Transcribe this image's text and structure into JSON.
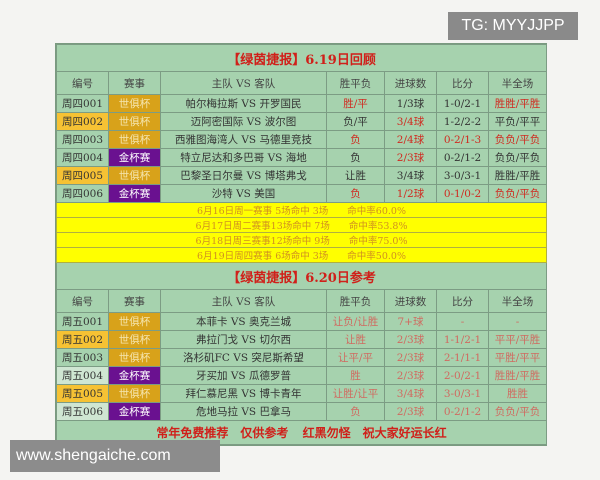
{
  "watermark_top": "TG: MYYJJPP",
  "watermark_bottom": "www.shengaiche.com",
  "section1": {
    "title": "【绿茵捷报】6.19日回顾",
    "headers": [
      "编号",
      "赛事",
      "主队 VS 客队",
      "胜平负",
      "进球数",
      "比分",
      "半全场"
    ],
    "rows": [
      {
        "id": "周四001",
        "id_bg": "green",
        "event": "世俱杯",
        "event_type": "wc",
        "match": "帕尔梅拉斯 VS 开罗国民",
        "result": "胜/平",
        "goals": "1/3球",
        "score": "1-0/2-1",
        "half": "胜胜/平胜",
        "red": [
          true,
          false,
          false,
          true
        ]
      },
      {
        "id": "周四002",
        "id_bg": "yellow",
        "event": "世俱杯",
        "event_type": "wc",
        "match": "迈阿密国际 VS 波尔图",
        "result": "负/平",
        "goals": "3/4球",
        "score": "1-2/2-2",
        "half": "平负/平平",
        "red": [
          false,
          true,
          false,
          false
        ]
      },
      {
        "id": "周四003",
        "id_bg": "green",
        "event": "世俱杯",
        "event_type": "wc",
        "match": "西雅图海湾人 VS 马德里竞技",
        "result": "负",
        "goals": "2/4球",
        "score": "0-2/1-3",
        "half": "负负/平负",
        "red": [
          true,
          true,
          true,
          true
        ]
      },
      {
        "id": "周四004",
        "id_bg": "green",
        "event": "金杯赛",
        "event_type": "gc",
        "match": "特立尼达和多巴哥 VS 海地",
        "result": "负",
        "goals": "2/3球",
        "score": "0-2/1-2",
        "half": "负负/平负",
        "red": [
          false,
          true,
          false,
          false
        ]
      },
      {
        "id": "周四005",
        "id_bg": "yellow",
        "event": "世俱杯",
        "event_type": "wc",
        "match": "巴黎圣日尔曼 VS 博塔弗戈",
        "result": "让胜",
        "goals": "3/4球",
        "score": "3-0/3-1",
        "half": "胜胜/平胜",
        "red": [
          false,
          false,
          false,
          false
        ]
      },
      {
        "id": "周四006",
        "id_bg": "green",
        "event": "金杯赛",
        "event_type": "gc",
        "match": "沙特 VS 美国",
        "result": "负",
        "goals": "1/2球",
        "score": "0-1/0-2",
        "half": "负负/平负",
        "red": [
          true,
          true,
          true,
          true
        ]
      }
    ]
  },
  "stats": [
    "6月16日周一赛事 5场命中 3场　　命中率60.0%",
    "6月17日周二赛事13场命中 7场　　命中率53.8%",
    "6月18日周三赛事12场命中 9场　　命中率75.0%",
    "6月19日周四赛事 6场命中 3场　　命中率50.0%"
  ],
  "section2": {
    "title": "【绿茵捷报】6.20日参考",
    "headers": [
      "编号",
      "赛事",
      "主队 VS 客队",
      "胜平负",
      "进球数",
      "比分",
      "半全场"
    ],
    "rows": [
      {
        "id": "周五001",
        "id_bg": "green",
        "event": "世俱杯",
        "event_type": "wc",
        "match": "本菲卡 VS 奥克兰城",
        "result": "让负/让胜",
        "goals": "7+球",
        "score": "-",
        "half": "-"
      },
      {
        "id": "周五002",
        "id_bg": "yellow",
        "event": "世俱杯",
        "event_type": "wc",
        "match": "弗拉门戈 VS 切尔西",
        "result": "让胜",
        "goals": "2/3球",
        "score": "1-1/2-1",
        "half": "平平/平胜"
      },
      {
        "id": "周五003",
        "id_bg": "green",
        "event": "世俱杯",
        "event_type": "wc",
        "match": "洛杉矶FC VS 突尼斯希望",
        "result": "让平/平",
        "goals": "2/3球",
        "score": "2-1/1-1",
        "half": "平胜/平平"
      },
      {
        "id": "周五004",
        "id_bg": "light",
        "event": "金杯赛",
        "event_type": "gc",
        "match": "牙买加 VS 瓜德罗普",
        "result": "胜",
        "goals": "2/3球",
        "score": "2-0/2-1",
        "half": "胜胜/平胜"
      },
      {
        "id": "周五005",
        "id_bg": "yellow",
        "event": "世俱杯",
        "event_type": "wc",
        "match": "拜仁慕尼黑 VS 博卡青年",
        "result": "让胜/让平",
        "goals": "3/4球",
        "score": "3-0/3-1",
        "half": "胜胜"
      },
      {
        "id": "周五006",
        "id_bg": "light",
        "event": "金杯赛",
        "event_type": "gc",
        "match": "危地马拉 VS 巴拿马",
        "result": "负",
        "goals": "2/3球",
        "score": "0-2/1-2",
        "half": "负负/平负"
      }
    ]
  },
  "footer": "常年免费推荐　仅供参考 红黑勿怪　祝大家好运长红"
}
